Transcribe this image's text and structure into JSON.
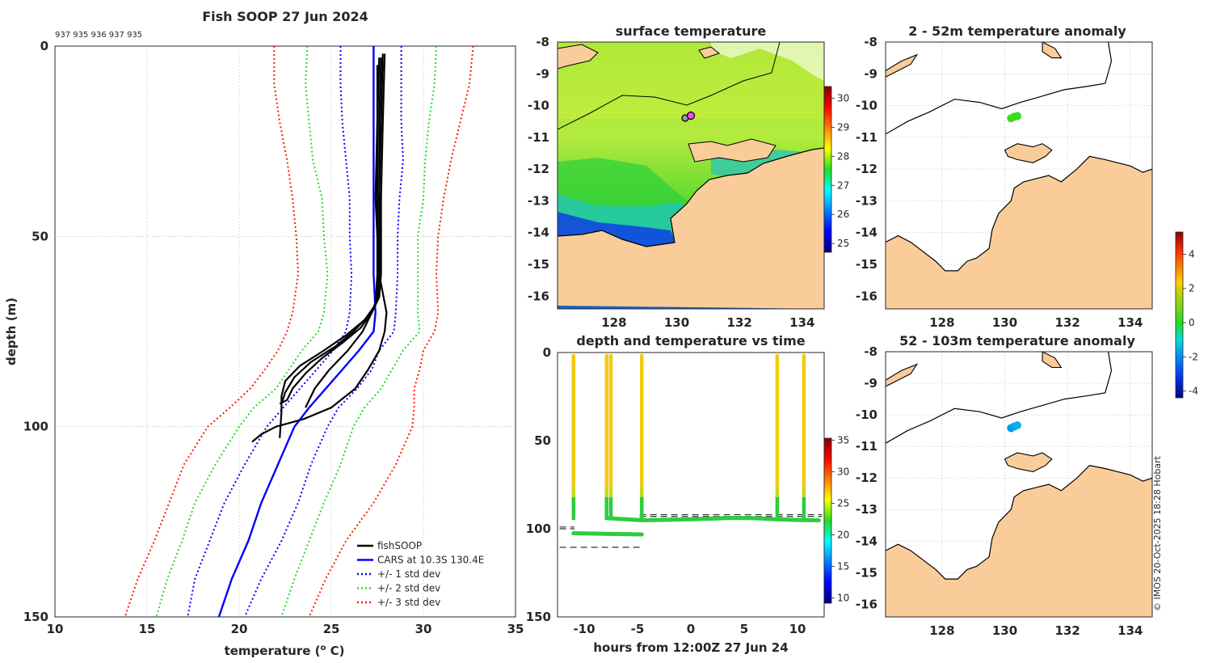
{
  "credit": "© IMOS 20-Oct-2025 18:28 Hobart",
  "colors": {
    "obs": "#000000",
    "cars": "#0000ff",
    "sd1": "#0000ff",
    "sd2": "#22dd22",
    "sd3": "#ff1a00",
    "land": "#f9cc9a",
    "grid": "#cfcfcf"
  },
  "chart_data": [
    {
      "id": "profile",
      "type": "line",
      "title": "Fish SOOP 27 Jun 2024",
      "subtitle": "937 935 936 937 935",
      "xlabel": "temperature (",
      "xlabel_sup": "o",
      "xlabel_end": " C)",
      "ylabel": "depth (m)",
      "xlim": [
        10,
        35
      ],
      "ylim": [
        150,
        0
      ],
      "xticks": [
        "10",
        "15",
        "20",
        "25",
        "30",
        "35"
      ],
      "yticks": [
        "0",
        "50",
        "100",
        "150"
      ],
      "legend": [
        "fishSOOP",
        "CARS at 10.3S 130.4E",
        "+/- 1 std dev",
        "+/- 2 std dev",
        "+/- 3 std dev"
      ],
      "depth": [
        0,
        10,
        20,
        30,
        40,
        50,
        60,
        70,
        75,
        80,
        85,
        90,
        95,
        100,
        110,
        120,
        130,
        140,
        150
      ],
      "cars": [
        27.3,
        27.3,
        27.3,
        27.3,
        27.3,
        27.3,
        27.3,
        27.4,
        27.3,
        26.5,
        25.6,
        24.7,
        23.8,
        23.0,
        22.1,
        21.2,
        20.5,
        19.6,
        18.9
      ],
      "sd1_minus": [
        25.5,
        25.5,
        25.6,
        25.8,
        26.0,
        26.0,
        26.1,
        26.0,
        25.8,
        25.1,
        24.2,
        23.3,
        22.4,
        21.5,
        20.3,
        19.2,
        18.4,
        17.6,
        17.2
      ],
      "sd1_plus": [
        28.8,
        28.8,
        28.8,
        28.9,
        28.7,
        28.6,
        28.6,
        28.5,
        28.4,
        27.6,
        27.2,
        26.4,
        25.4,
        24.8,
        23.9,
        23.2,
        22.3,
        21.2,
        20.3
      ],
      "sd2_minus": [
        23.7,
        23.6,
        23.8,
        24.0,
        24.5,
        24.6,
        24.8,
        24.6,
        24.3,
        23.4,
        22.7,
        22.0,
        20.8,
        20.0,
        18.7,
        17.6,
        16.9,
        16.1,
        15.5
      ],
      "sd2_plus": [
        30.7,
        30.6,
        30.3,
        30.1,
        30.0,
        29.7,
        29.7,
        29.7,
        29.8,
        28.9,
        28.3,
        27.7,
        26.8,
        26.2,
        25.5,
        24.6,
        23.8,
        23.0,
        22.3
      ],
      "sd3_minus": [
        21.9,
        21.9,
        22.2,
        22.6,
        22.9,
        23.1,
        23.2,
        22.9,
        22.6,
        22.1,
        21.4,
        20.6,
        19.5,
        18.3,
        17.0,
        16.2,
        15.4,
        14.5,
        13.8
      ],
      "sd3_plus": [
        32.7,
        32.5,
        32.0,
        31.5,
        31.1,
        30.8,
        30.7,
        30.8,
        30.6,
        30.0,
        29.8,
        29.5,
        29.5,
        29.4,
        28.5,
        27.3,
        25.8,
        24.7,
        23.8
      ],
      "casts": [
        {
          "depth": [
            2,
            20,
            40,
            60,
            66,
            70,
            74,
            78,
            82,
            86,
            90,
            93,
            94
          ],
          "temp": [
            27.9,
            27.8,
            27.7,
            27.7,
            27.6,
            27.2,
            26.6,
            25.6,
            24.5,
            23.6,
            22.9,
            22.6,
            22.2
          ]
        },
        {
          "depth": [
            2,
            20,
            40,
            60,
            67,
            71,
            75,
            79,
            83,
            87,
            91,
            94
          ],
          "temp": [
            27.8,
            27.7,
            27.6,
            27.6,
            27.5,
            27.0,
            26.2,
            25.2,
            23.9,
            23.0,
            22.5,
            22.3
          ]
        },
        {
          "depth": [
            3,
            20,
            40,
            60,
            68,
            72,
            76,
            80,
            84,
            88,
            92,
            96,
            103
          ],
          "temp": [
            27.6,
            27.5,
            27.5,
            27.5,
            27.4,
            26.8,
            25.8,
            24.6,
            23.3,
            22.5,
            22.3,
            22.3,
            22.2
          ]
        },
        {
          "depth": [
            3,
            20,
            40,
            60,
            66,
            70,
            75,
            80,
            85,
            90,
            95
          ],
          "temp": [
            27.7,
            27.6,
            27.6,
            27.6,
            27.5,
            27.2,
            26.7,
            25.9,
            24.9,
            24.1,
            23.6
          ]
        },
        {
          "depth": [
            5,
            20,
            40,
            60,
            70,
            75,
            80,
            85,
            90,
            95,
            98,
            100,
            102,
            104
          ],
          "temp": [
            27.5,
            27.5,
            27.4,
            27.6,
            28.0,
            27.9,
            27.6,
            27.0,
            26.3,
            25.0,
            23.5,
            22.0,
            21.2,
            20.7
          ]
        }
      ]
    },
    {
      "id": "sst",
      "type": "heatmap",
      "title": "surface temperature",
      "xlim": [
        126.2,
        134.7
      ],
      "ylim": [
        -16.4,
        -8.0
      ],
      "xticks": [
        "128",
        "130",
        "132",
        "134"
      ],
      "yticks": [
        "-8",
        "-9",
        "-10",
        "-11",
        "-12",
        "-13",
        "-14",
        "-15",
        "-16"
      ],
      "colorbar_ticks": [
        "30",
        "29",
        "28",
        "27",
        "26",
        "25"
      ],
      "clim": [
        24.7,
        30.4
      ],
      "marker": {
        "lon": 130.3,
        "lat": -10.35
      }
    },
    {
      "id": "anom_shallow",
      "type": "scatter",
      "title": "2 - 52m temperature anomaly",
      "xlim": [
        126.2,
        134.7
      ],
      "ylim": [
        -16.4,
        -8.0
      ],
      "xticks": [
        "128",
        "130",
        "132",
        "134"
      ],
      "yticks": [
        "-8",
        "-9",
        "-10",
        "-11",
        "-12",
        "-13",
        "-14",
        "-15",
        "-16"
      ],
      "points": [
        {
          "lon": 130.2,
          "lat": -10.4,
          "anom": 0.3
        },
        {
          "lon": 130.3,
          "lat": -10.35,
          "anom": 0.4
        },
        {
          "lon": 130.4,
          "lat": -10.33,
          "anom": 0.2
        }
      ]
    },
    {
      "id": "anom_deep",
      "type": "scatter",
      "title": "52 - 103m temperature anomaly",
      "xlim": [
        126.2,
        134.7
      ],
      "ylim": [
        -16.4,
        -8.0
      ],
      "xticks": [
        "128",
        "130",
        "132",
        "134"
      ],
      "yticks": [
        "-8",
        "-9",
        "-10",
        "-11",
        "-12",
        "-13",
        "-14",
        "-15",
        "-16"
      ],
      "points": [
        {
          "lon": 130.2,
          "lat": -10.42,
          "anom": -1.9
        },
        {
          "lon": 130.3,
          "lat": -10.37,
          "anom": -1.7
        },
        {
          "lon": 130.4,
          "lat": -10.33,
          "anom": -1.5
        }
      ],
      "colorbar_ticks": [
        "4",
        "2",
        "0",
        "-2",
        "-4"
      ],
      "clim": [
        -4.4,
        5.3
      ]
    },
    {
      "id": "timeseries",
      "type": "scatter",
      "title": "depth and temperature vs time",
      "xlabel": "hours from 12:00Z 27 Jun 24",
      "xlim": [
        -12.5,
        12.5
      ],
      "ylim": [
        150,
        0
      ],
      "xticks": [
        "-10",
        "-5",
        "0",
        "5",
        "10"
      ],
      "yticks": [
        "0",
        "50",
        "100",
        "150"
      ],
      "colorbar_ticks": [
        "35",
        "30",
        "25",
        "20",
        "15",
        "10"
      ],
      "clim": [
        9.2,
        35.3
      ],
      "casts_hours": [
        -11.0,
        -7.9,
        -7.5,
        -4.6,
        8.1,
        10.6
      ],
      "bottom_segments": [
        {
          "t": [
            -11.0,
            -4.6
          ],
          "d": [
            102.5,
            103.2
          ]
        },
        {
          "t": [
            -7.8,
            -4.5,
            0,
            2,
            4,
            6,
            8,
            10,
            12
          ],
          "d": [
            94.0,
            95.2,
            94.6,
            94.2,
            93.8,
            94.0,
            94.6,
            95.0,
            95.2
          ]
        }
      ],
      "dashed_lines": [
        {
          "t": [
            -4.8,
            12.3
          ],
          "d": 92.0
        },
        {
          "t": [
            -4.8,
            12.3
          ],
          "d": 93.0
        },
        {
          "t": [
            -12.3,
            -10.9
          ],
          "d": 99.0
        },
        {
          "t": [
            -12.3,
            -10.9
          ],
          "d": 100.0
        },
        {
          "t": [
            -12.3,
            -4.8
          ],
          "d": 110.5
        }
      ]
    }
  ]
}
